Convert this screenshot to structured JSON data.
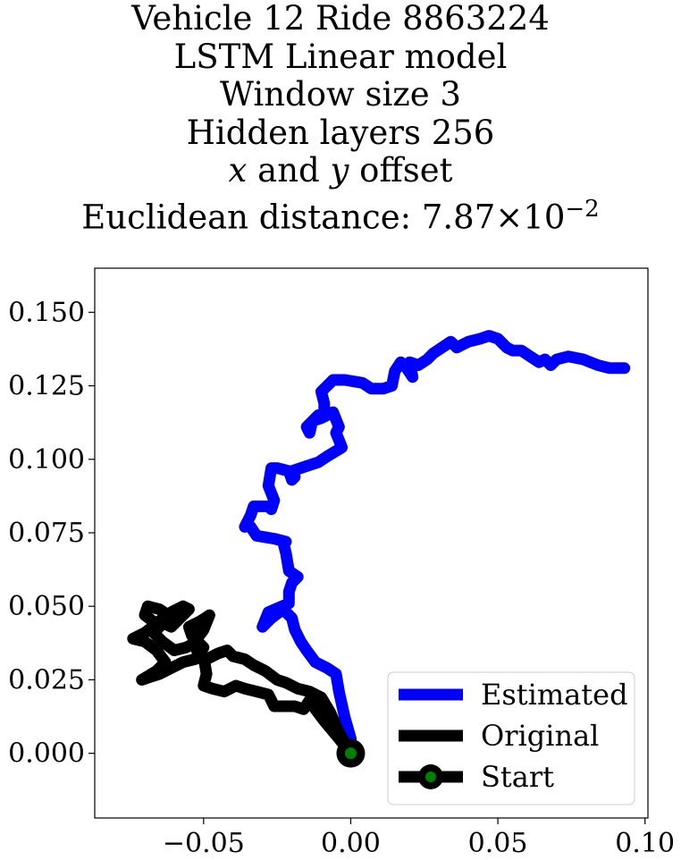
{
  "chart_data": {
    "type": "line",
    "title_lines": [
      "Vehicle 12 Ride 8863224",
      "LSTM Linear model",
      "Window size 3",
      "Hidden layers 256"
    ],
    "title_offset": {
      "x": "x",
      "mid": " and ",
      "y": "y",
      "rest": " offset"
    },
    "title_distance": {
      "prefix": "Euclidean distance: ",
      "mantissa": "7.87",
      "times": "×",
      "base": "10",
      "exponent": "−2"
    },
    "xlim": [
      -0.087,
      0.101
    ],
    "ylim": [
      -0.022,
      0.165
    ],
    "xticks": [
      {
        "value": -0.05,
        "label": "−0.05"
      },
      {
        "value": 0.0,
        "label": "0.00"
      },
      {
        "value": 0.05,
        "label": "0.05"
      },
      {
        "value": 0.1,
        "label": "0.10"
      }
    ],
    "yticks": [
      {
        "value": 0.0,
        "label": "0.000"
      },
      {
        "value": 0.025,
        "label": "0.025"
      },
      {
        "value": 0.05,
        "label": "0.050"
      },
      {
        "value": 0.075,
        "label": "0.075"
      },
      {
        "value": 0.1,
        "label": "0.100"
      },
      {
        "value": 0.125,
        "label": "0.125"
      },
      {
        "value": 0.15,
        "label": "0.150"
      }
    ],
    "grid": false,
    "legend_position": "lower-right",
    "series": [
      {
        "name": "Estimated",
        "color": "#0000ff",
        "points": [
          [
            0.0,
            0.0
          ],
          [
            0.0,
            0.005
          ],
          [
            -0.002,
            0.012
          ],
          [
            -0.004,
            0.021
          ],
          [
            -0.005,
            0.027
          ],
          [
            -0.008,
            0.029
          ],
          [
            -0.012,
            0.031
          ],
          [
            -0.015,
            0.035
          ],
          [
            -0.017,
            0.038
          ],
          [
            -0.019,
            0.042
          ],
          [
            -0.02,
            0.046
          ],
          [
            -0.023,
            0.049
          ],
          [
            -0.027,
            0.046
          ],
          [
            -0.03,
            0.043
          ],
          [
            -0.028,
            0.048
          ],
          [
            -0.021,
            0.051
          ],
          [
            -0.021,
            0.055
          ],
          [
            -0.02,
            0.058
          ],
          [
            -0.018,
            0.06
          ],
          [
            -0.021,
            0.062
          ],
          [
            -0.022,
            0.068
          ],
          [
            -0.023,
            0.072
          ],
          [
            -0.022,
            0.072
          ],
          [
            -0.026,
            0.073
          ],
          [
            -0.032,
            0.074
          ],
          [
            -0.034,
            0.077
          ],
          [
            -0.035,
            0.078
          ],
          [
            -0.036,
            0.077
          ],
          [
            -0.034,
            0.081
          ],
          [
            -0.033,
            0.084
          ],
          [
            -0.03,
            0.084
          ],
          [
            -0.028,
            0.084
          ],
          [
            -0.027,
            0.083
          ],
          [
            -0.026,
            0.086
          ],
          [
            -0.028,
            0.091
          ],
          [
            -0.027,
            0.097
          ],
          [
            -0.025,
            0.097
          ],
          [
            -0.021,
            0.096
          ],
          [
            -0.02,
            0.093
          ],
          [
            -0.019,
            0.094
          ],
          [
            -0.02,
            0.096
          ],
          [
            -0.017,
            0.097
          ],
          [
            -0.011,
            0.099
          ],
          [
            -0.008,
            0.101
          ],
          [
            -0.003,
            0.104
          ],
          [
            -0.005,
            0.109
          ],
          [
            -0.004,
            0.111
          ],
          [
            -0.006,
            0.116
          ],
          [
            -0.01,
            0.114
          ],
          [
            -0.013,
            0.113
          ],
          [
            -0.014,
            0.109
          ],
          [
            -0.015,
            0.111
          ],
          [
            -0.011,
            0.115
          ],
          [
            -0.009,
            0.115
          ],
          [
            -0.009,
            0.119
          ],
          [
            -0.01,
            0.123
          ],
          [
            -0.008,
            0.125
          ],
          [
            -0.006,
            0.127
          ],
          [
            -0.002,
            0.127
          ],
          [
            0.004,
            0.126
          ],
          [
            0.007,
            0.124
          ],
          [
            0.011,
            0.124
          ],
          [
            0.014,
            0.125
          ],
          [
            0.015,
            0.13
          ],
          [
            0.017,
            0.133
          ],
          [
            0.019,
            0.131
          ],
          [
            0.021,
            0.128
          ],
          [
            0.02,
            0.133
          ],
          [
            0.023,
            0.132
          ],
          [
            0.026,
            0.134
          ],
          [
            0.028,
            0.136
          ],
          [
            0.031,
            0.138
          ],
          [
            0.034,
            0.14
          ],
          [
            0.036,
            0.138
          ],
          [
            0.04,
            0.14
          ],
          [
            0.044,
            0.141
          ],
          [
            0.047,
            0.142
          ],
          [
            0.05,
            0.141
          ],
          [
            0.053,
            0.138
          ],
          [
            0.055,
            0.137
          ],
          [
            0.058,
            0.137
          ],
          [
            0.061,
            0.135
          ],
          [
            0.064,
            0.133
          ],
          [
            0.066,
            0.134
          ],
          [
            0.068,
            0.132
          ],
          [
            0.07,
            0.134
          ],
          [
            0.074,
            0.135
          ],
          [
            0.079,
            0.134
          ],
          [
            0.084,
            0.132
          ],
          [
            0.088,
            0.131
          ],
          [
            0.093,
            0.131
          ]
        ]
      },
      {
        "name": "Original",
        "color": "#000000",
        "points": [
          [
            0.0,
            0.0
          ],
          [
            -0.004,
            0.005
          ],
          [
            -0.009,
            0.011
          ],
          [
            -0.012,
            0.015
          ],
          [
            -0.014,
            0.018
          ],
          [
            -0.016,
            0.015
          ],
          [
            -0.019,
            0.016
          ],
          [
            -0.023,
            0.016
          ],
          [
            -0.026,
            0.016
          ],
          [
            -0.028,
            0.02
          ],
          [
            -0.032,
            0.021
          ],
          [
            -0.036,
            0.022
          ],
          [
            -0.039,
            0.023
          ],
          [
            -0.043,
            0.021
          ],
          [
            -0.047,
            0.022
          ],
          [
            -0.05,
            0.023
          ],
          [
            -0.049,
            0.027
          ],
          [
            -0.05,
            0.033
          ],
          [
            -0.053,
            0.032
          ],
          [
            -0.057,
            0.031
          ],
          [
            -0.061,
            0.029
          ],
          [
            -0.065,
            0.027
          ],
          [
            -0.068,
            0.026
          ],
          [
            -0.071,
            0.025
          ],
          [
            -0.066,
            0.028
          ],
          [
            -0.063,
            0.031
          ],
          [
            -0.066,
            0.035
          ],
          [
            -0.07,
            0.038
          ],
          [
            -0.074,
            0.039
          ],
          [
            -0.07,
            0.041
          ],
          [
            -0.066,
            0.044
          ],
          [
            -0.07,
            0.047
          ],
          [
            -0.069,
            0.05
          ],
          [
            -0.065,
            0.049
          ],
          [
            -0.062,
            0.047
          ],
          [
            -0.065,
            0.045
          ],
          [
            -0.061,
            0.043
          ],
          [
            -0.058,
            0.046
          ],
          [
            -0.055,
            0.049
          ],
          [
            -0.057,
            0.05
          ],
          [
            -0.061,
            0.048
          ],
          [
            -0.064,
            0.044
          ],
          [
            -0.067,
            0.041
          ],
          [
            -0.064,
            0.038
          ],
          [
            -0.06,
            0.035
          ],
          [
            -0.056,
            0.036
          ],
          [
            -0.052,
            0.038
          ],
          [
            -0.05,
            0.036
          ],
          [
            -0.054,
            0.04
          ],
          [
            -0.055,
            0.043
          ],
          [
            -0.051,
            0.045
          ],
          [
            -0.048,
            0.047
          ],
          [
            -0.05,
            0.042
          ],
          [
            -0.053,
            0.038
          ],
          [
            -0.052,
            0.034
          ],
          [
            -0.049,
            0.032
          ],
          [
            -0.045,
            0.034
          ],
          [
            -0.042,
            0.035
          ],
          [
            -0.04,
            0.033
          ],
          [
            -0.036,
            0.032
          ],
          [
            -0.033,
            0.03
          ],
          [
            -0.029,
            0.028
          ],
          [
            -0.025,
            0.025
          ],
          [
            -0.022,
            0.024
          ],
          [
            -0.018,
            0.022
          ],
          [
            -0.014,
            0.021
          ],
          [
            -0.01,
            0.019
          ],
          [
            -0.007,
            0.014
          ],
          [
            -0.004,
            0.007
          ],
          [
            -0.001,
            0.002
          ],
          [
            0.0,
            0.0
          ]
        ]
      }
    ],
    "start_marker": {
      "name": "Start",
      "x": 0.0,
      "y": 0.0,
      "color": "#008000",
      "edge": "#000000"
    },
    "legend": [
      "Estimated",
      "Original",
      "Start"
    ]
  }
}
